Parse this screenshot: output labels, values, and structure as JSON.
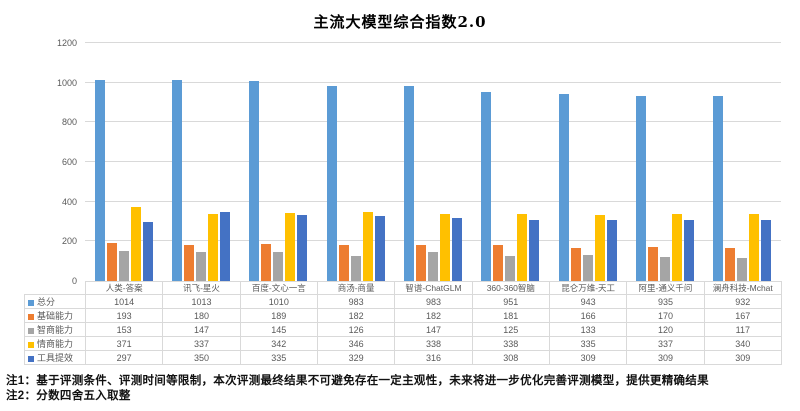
{
  "title": "主流大模型综合指数2.0",
  "chart_data": {
    "type": "bar",
    "title": "主流大模型综合指数2.0",
    "categories": [
      "人类-答案",
      "讯飞-星火",
      "百度-文心一言",
      "商汤-商量",
      "智谱-ChatGLM",
      "360-360智脑",
      "昆仑万维-天工",
      "阿里-通义千问",
      "澜舟科技-Mchat"
    ],
    "series": [
      {
        "name": "总分",
        "color": "#5B9BD5",
        "values": [
          1014,
          1013,
          1010,
          983,
          983,
          951,
          943,
          935,
          932
        ]
      },
      {
        "name": "基础能力",
        "color": "#ED7D31",
        "values": [
          193,
          180,
          189,
          182,
          182,
          181,
          166,
          170,
          167
        ]
      },
      {
        "name": "智商能力",
        "color": "#A5A5A5",
        "values": [
          153,
          147,
          145,
          126,
          147,
          125,
          133,
          120,
          117
        ]
      },
      {
        "name": "情商能力",
        "color": "#FFC000",
        "values": [
          371,
          337,
          342,
          346,
          338,
          338,
          335,
          337,
          340
        ]
      },
      {
        "name": "工具提效",
        "color": "#4472C4",
        "values": [
          297,
          350,
          335,
          329,
          316,
          308,
          309,
          309,
          309
        ]
      }
    ],
    "xlabel": "",
    "ylabel": "",
    "ylim": [
      0,
      1200
    ],
    "yticks": [
      0,
      200,
      400,
      600,
      800,
      1000,
      1200
    ],
    "grid": true,
    "legend_position": "data-table-left",
    "data_table_shown": true
  },
  "footnotes": [
    "注1：基于评测条件、评测时间等限制，本次评测最终结果不可避免存在一定主观性，未来将进一步优化完善评测模型，提供更精确结果",
    "注2：分数四舍五入取整"
  ]
}
